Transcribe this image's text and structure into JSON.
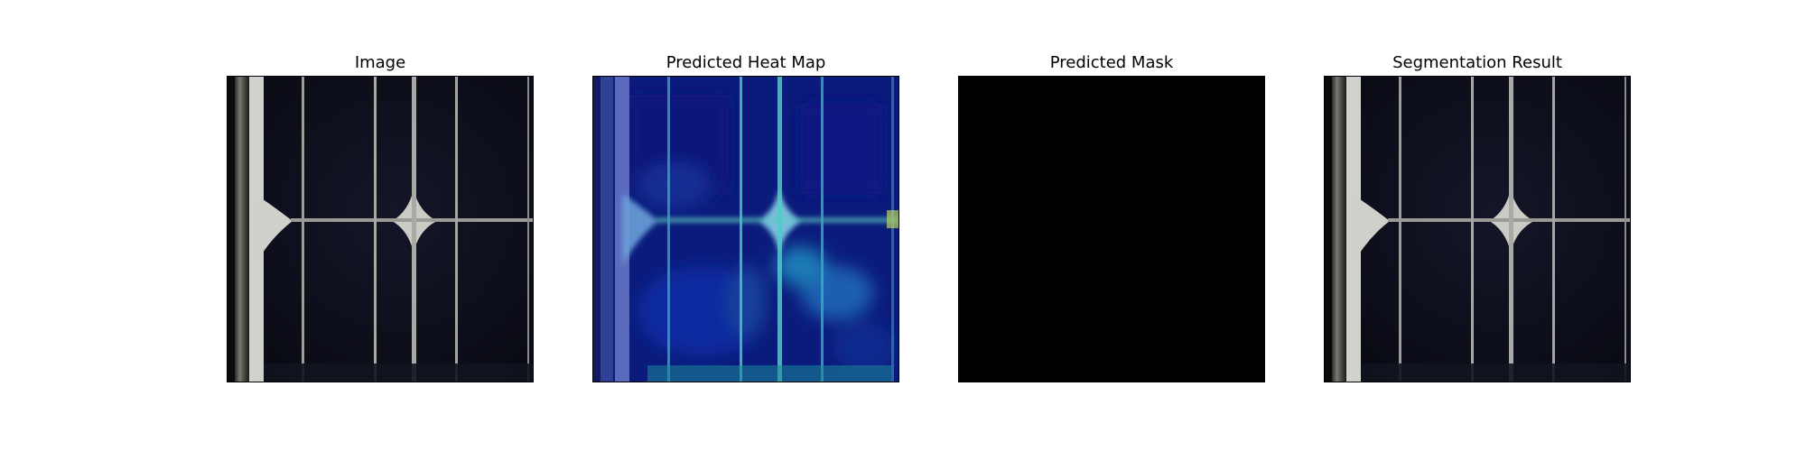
{
  "figure": {
    "panels": [
      {
        "title": "Image",
        "content": "solar-cell-grayscale"
      },
      {
        "title": "Predicted Heat Map",
        "content": "anomaly-heatmap-overlay"
      },
      {
        "title": "Predicted Mask",
        "content": "empty-mask-all-black"
      },
      {
        "title": "Segmentation Result",
        "content": "solar-cell-no-segmentation"
      }
    ]
  },
  "colors": {
    "background": "#ffffff",
    "cell_dark": "#0d0f1e",
    "busbar_light": "#cfcfcf",
    "heatmap_low": "#0a1a8a",
    "heatmap_mid": "#1f6fd0",
    "heatmap_high": "#3fd6c6",
    "mask": "#000000"
  }
}
